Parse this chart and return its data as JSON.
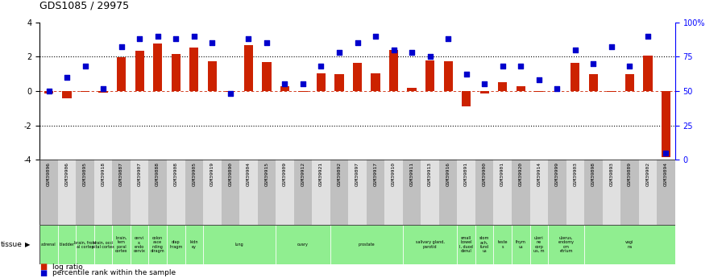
{
  "title": "GDS1085 / 29975",
  "samples": [
    "GSM39896",
    "GSM39906",
    "GSM39895",
    "GSM39918",
    "GSM39887",
    "GSM39907",
    "GSM39888",
    "GSM39908",
    "GSM39905",
    "GSM39919",
    "GSM39890",
    "GSM39904",
    "GSM39915",
    "GSM39909",
    "GSM39912",
    "GSM39921",
    "GSM39892",
    "GSM39897",
    "GSM39917",
    "GSM39910",
    "GSM39911",
    "GSM39913",
    "GSM39916",
    "GSM39891",
    "GSM39900",
    "GSM39901",
    "GSM39920",
    "GSM39914",
    "GSM39999",
    "GSM39903",
    "GSM39898",
    "GSM39893",
    "GSM39889",
    "GSM39902",
    "GSM39894"
  ],
  "log_ratio": [
    -0.15,
    -0.4,
    -0.05,
    -0.08,
    1.95,
    2.35,
    2.75,
    2.15,
    2.55,
    1.75,
    -0.05,
    2.65,
    1.7,
    0.3,
    -0.05,
    1.05,
    1.0,
    1.65,
    1.05,
    2.4,
    0.2,
    1.8,
    1.75,
    -0.9,
    -0.12,
    0.5,
    0.3,
    -0.05,
    0.0,
    1.65,
    1.0,
    -0.05,
    1.0,
    2.05,
    -3.85
  ],
  "percentile_rank": [
    50,
    60,
    68,
    52,
    82,
    88,
    90,
    88,
    90,
    85,
    48,
    88,
    85,
    55,
    55,
    68,
    78,
    85,
    90,
    80,
    78,
    75,
    88,
    62,
    55,
    68,
    68,
    58,
    52,
    80,
    70,
    82,
    68,
    90,
    5
  ],
  "tissue_groups": [
    {
      "label": "adrenal",
      "start": 0,
      "end": 1
    },
    {
      "label": "bladder",
      "start": 1,
      "end": 2
    },
    {
      "label": "brain, front\nal cortex",
      "start": 2,
      "end": 3
    },
    {
      "label": "brain, occi\npital cortex",
      "start": 3,
      "end": 4
    },
    {
      "label": "brain,\ntem\nporal\ncortex",
      "start": 4,
      "end": 5
    },
    {
      "label": "cervi\nx,\nendo\ncervix",
      "start": 5,
      "end": 6
    },
    {
      "label": "colon\nasce\nnding\ndiragm",
      "start": 6,
      "end": 7
    },
    {
      "label": "diap\nhragm",
      "start": 7,
      "end": 8
    },
    {
      "label": "kidn\ney",
      "start": 8,
      "end": 9
    },
    {
      "label": "lung",
      "start": 9,
      "end": 13
    },
    {
      "label": "ovary",
      "start": 13,
      "end": 16
    },
    {
      "label": "prostate",
      "start": 16,
      "end": 20
    },
    {
      "label": "salivary gland,\nparotid",
      "start": 20,
      "end": 23
    },
    {
      "label": "small\nbowel\nI, duod\ndenul",
      "start": 23,
      "end": 24
    },
    {
      "label": "stom\nach,\nfund\nus",
      "start": 24,
      "end": 25
    },
    {
      "label": "teste\ns",
      "start": 25,
      "end": 26
    },
    {
      "label": "thym\nus",
      "start": 26,
      "end": 27
    },
    {
      "label": "uteri\nne\ncorp\nus, m",
      "start": 27,
      "end": 28
    },
    {
      "label": "uterus,\nendomy\nom\netrium",
      "start": 28,
      "end": 30
    },
    {
      "label": "vagi\nna",
      "start": 30,
      "end": 35
    }
  ],
  "bar_color": "#CC2200",
  "dot_color": "#0000CC",
  "green_color": "#90EE90",
  "tick_bg_dark": "#C0C0C0",
  "tick_bg_light": "#E0E0E0"
}
